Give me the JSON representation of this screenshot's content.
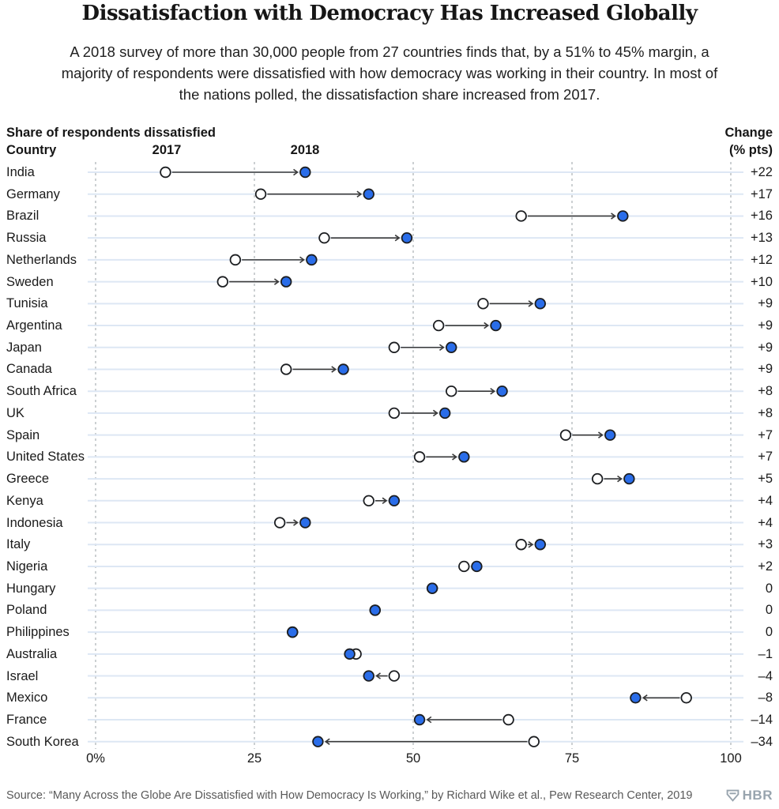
{
  "header": {
    "title": "Dissatisfaction with Democracy Has Increased Globally",
    "subtitle": "A 2018 survey of more than 30,000 people from 27 countries finds that, by a 51% to 45% margin, a majority of respondents were dissatisfied with how democracy was working in their country. In most of the nations polled, the dissatisfaction share increased from 2017."
  },
  "table_header": {
    "measure_label": "Share of respondents dissatisfied",
    "country_label": "Country",
    "col_2017": "2017",
    "col_2018": "2018",
    "change_line1": "Change",
    "change_line2": "(% pts)"
  },
  "chart_data": {
    "type": "scatter",
    "subtype": "dumbbell-dot-plot",
    "x_axis": {
      "range": [
        0,
        100
      ],
      "tick_values": [
        0,
        25,
        50,
        75,
        100
      ],
      "tick_labels": [
        "0%",
        "25",
        "50",
        "75",
        "100"
      ],
      "gridlines": "vertical-dashed"
    },
    "series": [
      {
        "name": "2017",
        "marker": "open-circle",
        "fill": "#ffffff"
      },
      {
        "name": "2018",
        "marker": "filled-circle",
        "fill": "#2a6de9"
      }
    ],
    "rows": [
      {
        "country": "India",
        "y2017": 11,
        "y2018": 33,
        "change": 22,
        "change_label": "+22"
      },
      {
        "country": "Germany",
        "y2017": 26,
        "y2018": 43,
        "change": 17,
        "change_label": "+17"
      },
      {
        "country": "Brazil",
        "y2017": 67,
        "y2018": 83,
        "change": 16,
        "change_label": "+16"
      },
      {
        "country": "Russia",
        "y2017": 36,
        "y2018": 49,
        "change": 13,
        "change_label": "+13"
      },
      {
        "country": "Netherlands",
        "y2017": 22,
        "y2018": 34,
        "change": 12,
        "change_label": "+12"
      },
      {
        "country": "Sweden",
        "y2017": 20,
        "y2018": 30,
        "change": 10,
        "change_label": "+10"
      },
      {
        "country": "Tunisia",
        "y2017": 61,
        "y2018": 70,
        "change": 9,
        "change_label": "+9"
      },
      {
        "country": "Argentina",
        "y2017": 54,
        "y2018": 63,
        "change": 9,
        "change_label": "+9"
      },
      {
        "country": "Japan",
        "y2017": 47,
        "y2018": 56,
        "change": 9,
        "change_label": "+9"
      },
      {
        "country": "Canada",
        "y2017": 30,
        "y2018": 39,
        "change": 9,
        "change_label": "+9"
      },
      {
        "country": "South Africa",
        "y2017": 56,
        "y2018": 64,
        "change": 8,
        "change_label": "+8"
      },
      {
        "country": "UK",
        "y2017": 47,
        "y2018": 55,
        "change": 8,
        "change_label": "+8"
      },
      {
        "country": "Spain",
        "y2017": 74,
        "y2018": 81,
        "change": 7,
        "change_label": "+7"
      },
      {
        "country": "United States",
        "y2017": 51,
        "y2018": 58,
        "change": 7,
        "change_label": "+7"
      },
      {
        "country": "Greece",
        "y2017": 79,
        "y2018": 84,
        "change": 5,
        "change_label": "+5"
      },
      {
        "country": "Kenya",
        "y2017": 43,
        "y2018": 47,
        "change": 4,
        "change_label": "+4"
      },
      {
        "country": "Indonesia",
        "y2017": 29,
        "y2018": 33,
        "change": 4,
        "change_label": "+4"
      },
      {
        "country": "Italy",
        "y2017": 67,
        "y2018": 70,
        "change": 3,
        "change_label": "+3"
      },
      {
        "country": "Nigeria",
        "y2017": 58,
        "y2018": 60,
        "change": 2,
        "change_label": "+2"
      },
      {
        "country": "Hungary",
        "y2017": 53,
        "y2018": 53,
        "change": 0,
        "change_label": "0"
      },
      {
        "country": "Poland",
        "y2017": 44,
        "y2018": 44,
        "change": 0,
        "change_label": "0"
      },
      {
        "country": "Philippines",
        "y2017": 31,
        "y2018": 31,
        "change": 0,
        "change_label": "0"
      },
      {
        "country": "Australia",
        "y2017": 41,
        "y2018": 40,
        "change": -1,
        "change_label": "–1"
      },
      {
        "country": "Israel",
        "y2017": 47,
        "y2018": 43,
        "change": -4,
        "change_label": "–4"
      },
      {
        "country": "Mexico",
        "y2017": 93,
        "y2018": 85,
        "change": -8,
        "change_label": "–8"
      },
      {
        "country": "France",
        "y2017": 65,
        "y2018": 51,
        "change": -14,
        "change_label": "–14"
      },
      {
        "country": "South Korea",
        "y2017": 69,
        "y2018": 35,
        "change": -34,
        "change_label": "–34"
      }
    ]
  },
  "colors": {
    "dot_2018_fill": "#2a6de9",
    "dot_2017_fill": "#ffffff",
    "dot_stroke": "#1c1e21",
    "arrow": "#3a3a3a",
    "row_line": "#dde7f4",
    "gridline": "#9aa0a6",
    "text": "#1a1a1a",
    "source_text": "#595959",
    "brand_gray": "#98a4ae"
  },
  "footer": {
    "source": "Source: “Many Across the Globe Are Dissatisfied with How Democracy Is Working,” by Richard Wike et al., Pew Research Center, 2019",
    "brand": "HBR"
  }
}
